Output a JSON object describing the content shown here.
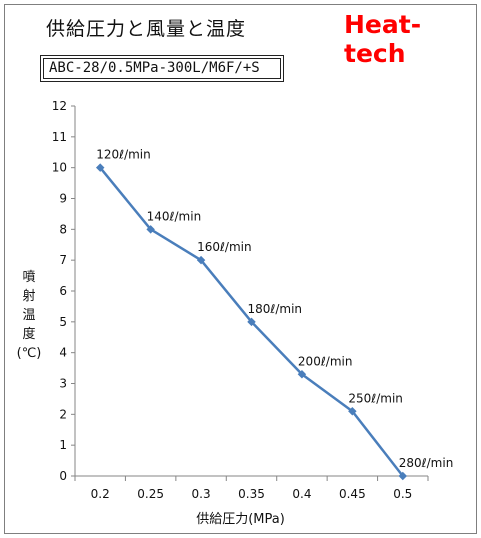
{
  "header": {
    "title": "供給圧力と風量と温度",
    "brand": "Heat-tech",
    "model": "ABC-28/0.5MPa-300L/M6F/+S"
  },
  "colors": {
    "brand": "#ff0000",
    "series": "#4a7ebb"
  },
  "chart_data": {
    "type": "line",
    "title": "",
    "xlabel": "供給圧力(MPa)",
    "ylabel": [
      "噴",
      "射",
      "温",
      "度",
      "(℃)"
    ],
    "categories": [
      "0.2",
      "0.25",
      "0.3",
      "0.35",
      "0.4",
      "0.45",
      "0.5"
    ],
    "values": [
      10,
      8,
      7,
      5,
      3.3,
      2.1,
      0
    ],
    "data_labels": [
      "120ℓ/min",
      "140ℓ/min",
      "160ℓ/min",
      "180ℓ/min",
      "200ℓ/min",
      "250ℓ/min",
      "280ℓ/min"
    ],
    "ylim": [
      0,
      12
    ],
    "yticks": [
      "0",
      "1",
      "2",
      "3",
      "4",
      "5",
      "6",
      "7",
      "8",
      "9",
      "10",
      "11",
      "12"
    ],
    "grid": false,
    "legend": "none"
  }
}
